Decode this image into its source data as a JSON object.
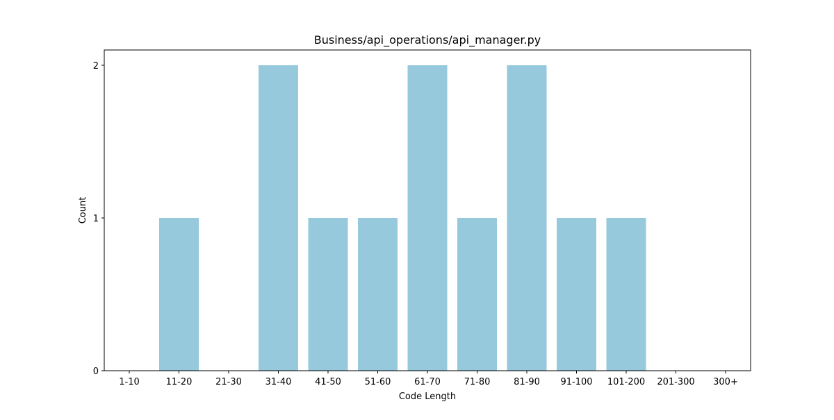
{
  "chart_data": {
    "type": "bar",
    "title": "Business/api_operations/api_manager.py",
    "xlabel": "Code Length",
    "ylabel": "Count",
    "categories": [
      "1-10",
      "11-20",
      "21-30",
      "31-40",
      "41-50",
      "51-60",
      "61-70",
      "71-80",
      "81-90",
      "91-100",
      "101-200",
      "201-300",
      "300+"
    ],
    "values": [
      0,
      1,
      0,
      2,
      1,
      1,
      2,
      1,
      2,
      1,
      1,
      0,
      0
    ],
    "ylim": [
      0,
      2.1
    ],
    "yticks": [
      0,
      1,
      2
    ],
    "bar_color": "#96c9dc",
    "grid": false,
    "legend": "none"
  }
}
